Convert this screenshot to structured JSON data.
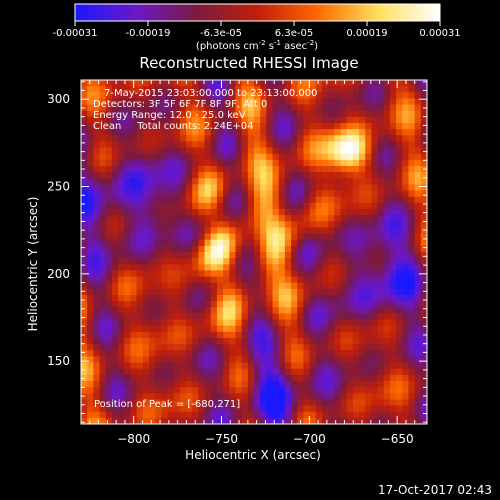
{
  "colorbar": {
    "ticks": [
      "-0.00031",
      "-0.00019",
      "-6.3e-05",
      "6.3e-05",
      "0.00019",
      "0.00031"
    ],
    "unit_label": "(photons cm",
    "unit_sup1": "-2",
    "unit_mid": " s",
    "unit_sup2": "-1",
    "unit_end": " asec",
    "unit_sup3": "-2",
    "unit_close": ")",
    "stops": [
      "#1a18ff",
      "#6a18c8",
      "#7a1a40",
      "#c0200a",
      "#ff6a00",
      "#ffe060",
      "#ffffff"
    ]
  },
  "chart_data": {
    "type": "heatmap",
    "title": "Reconstructed RHESSI Image",
    "xlabel": "Heliocentric X (arcsec)",
    "ylabel": "Heliocentric Y (arcsec)",
    "xlim": [
      -830,
      -633
    ],
    "ylim": [
      114,
      311
    ],
    "xticks": [
      -800,
      -750,
      -700,
      -650
    ],
    "yticks": [
      150,
      200,
      250,
      300
    ],
    "xtick_labels": [
      "−800",
      "−750",
      "−700",
      "−650"
    ],
    "ytick_labels": [
      "150",
      "200",
      "250",
      "300"
    ],
    "value_range": [
      -0.00031,
      0.00031
    ],
    "peak_position": [
      -680,
      271
    ],
    "annotations": {
      "time_range": "7-May-2015 23:03:00.000 to 23:13:00.000",
      "detectors": "Detectors: 3F 5F 6F 7F 8F 9F, Att 0",
      "energy_range": "Energy Range: 12.0 - 25.0 keV",
      "clean_counts": "Clean     Total counts: 2.24E+04",
      "peak_label": "Position of Peak = [-680,271]"
    }
  },
  "footer": {
    "timestamp": "17-Oct-2017 02:43"
  }
}
